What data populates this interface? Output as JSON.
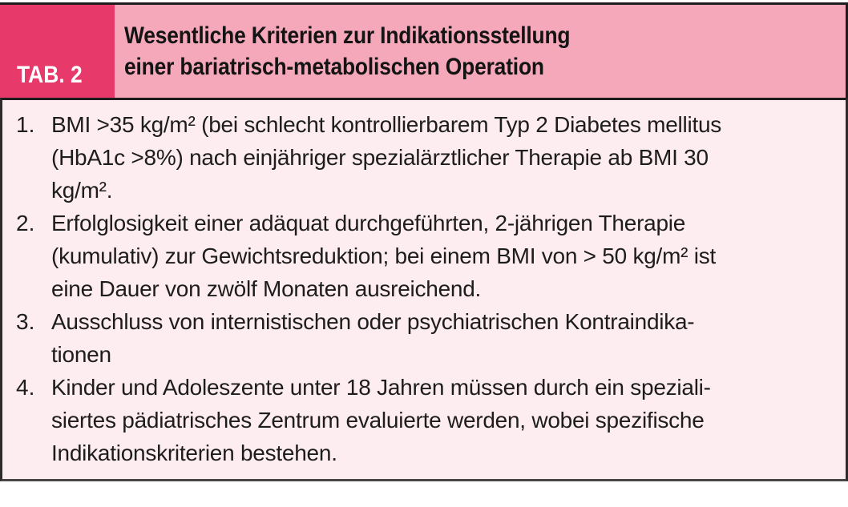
{
  "table": {
    "tag_label": "TAB. 2",
    "title_lines": [
      "Wesentliche Kriterien zur Indikationsstellung",
      "einer bariatrisch-metabolischen Operation"
    ],
    "colors": {
      "tag_background": "#e8396b",
      "header_background": "#f4a8ba",
      "body_background": "#fdecf0",
      "rule": "#1f1c1d",
      "tag_text": "#ffffff",
      "body_text": "#1d1d1b"
    },
    "items": [
      {
        "number": "1.",
        "lines": [
          "BMI >35 kg/m² (bei schlecht kontrollierbarem Typ 2 Diabetes mellitus",
          "(HbA1c >8%) nach einjähriger spezialärztlicher Therapie ab BMI 30",
          "kg/m²."
        ]
      },
      {
        "number": "2.",
        "lines": [
          "Erfolglosigkeit einer adäquat durchgeführten, 2-jährigen Therapie",
          "(kumulativ) zur Gewichtsreduktion; bei einem BMI von > 50 kg/m² ist",
          "eine Dauer von zwölf Monaten ausreichend."
        ]
      },
      {
        "number": "3.",
        "lines": [
          "Ausschluss von internistischen oder psychiatrischen Kontraindika-",
          "tionen"
        ]
      },
      {
        "number": "4.",
        "lines": [
          "Kinder und Adoleszente unter 18 Jahren müssen durch ein speziali-",
          "siertes pädiatrisches Zentrum evaluierte werden, wobei spezifische",
          "Indikationskriterien bestehen."
        ]
      }
    ]
  }
}
